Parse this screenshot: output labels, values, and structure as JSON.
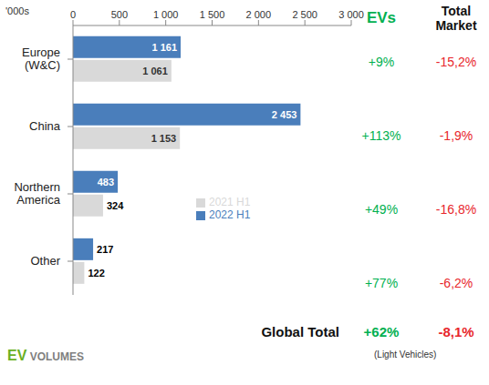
{
  "chart_data": {
    "type": "bar",
    "orientation": "horizontal",
    "unit_label": "'000s",
    "categories": [
      "Europe (W&C)",
      "China",
      "Northern America",
      "Other"
    ],
    "series": [
      {
        "name": "2022 H1",
        "color": "#4a7ebb",
        "values": [
          1161,
          2453,
          483,
          217
        ],
        "value_labels": [
          "1 161",
          "2 453",
          "483",
          "217"
        ]
      },
      {
        "name": "2021 H1",
        "color": "#d9d9d9",
        "values": [
          1061,
          1153,
          324,
          122
        ],
        "value_labels": [
          "1 061",
          "1 153",
          "324",
          "122"
        ]
      }
    ],
    "xlim": [
      0,
      3000
    ],
    "xticks": [
      0,
      500,
      {
        "value": 1000,
        "label": "1 000"
      },
      {
        "value": 1500,
        "label": "1 500"
      },
      {
        "value": 2000,
        "label": "2 000"
      },
      {
        "value": 2500,
        "label": "2 500"
      },
      {
        "value": 3000,
        "label": "3 000"
      }
    ],
    "grid": false,
    "legend": "right",
    "data_labels": true,
    "columns": [
      {
        "title": "EVs",
        "color": "#00b050",
        "labels": [
          "+9%",
          "+113%",
          "+49%",
          "+77%"
        ],
        "total": "+62%"
      },
      {
        "title": "Total Market",
        "color": "#e8262b",
        "labels": [
          "-15,2%",
          "-1,9%",
          "-16,8%",
          "-6,2%"
        ],
        "total": "-8,1%"
      }
    ],
    "total_label": "Global Total",
    "note": "(Light Vehicles)",
    "source": "EV VOLUMES"
  }
}
